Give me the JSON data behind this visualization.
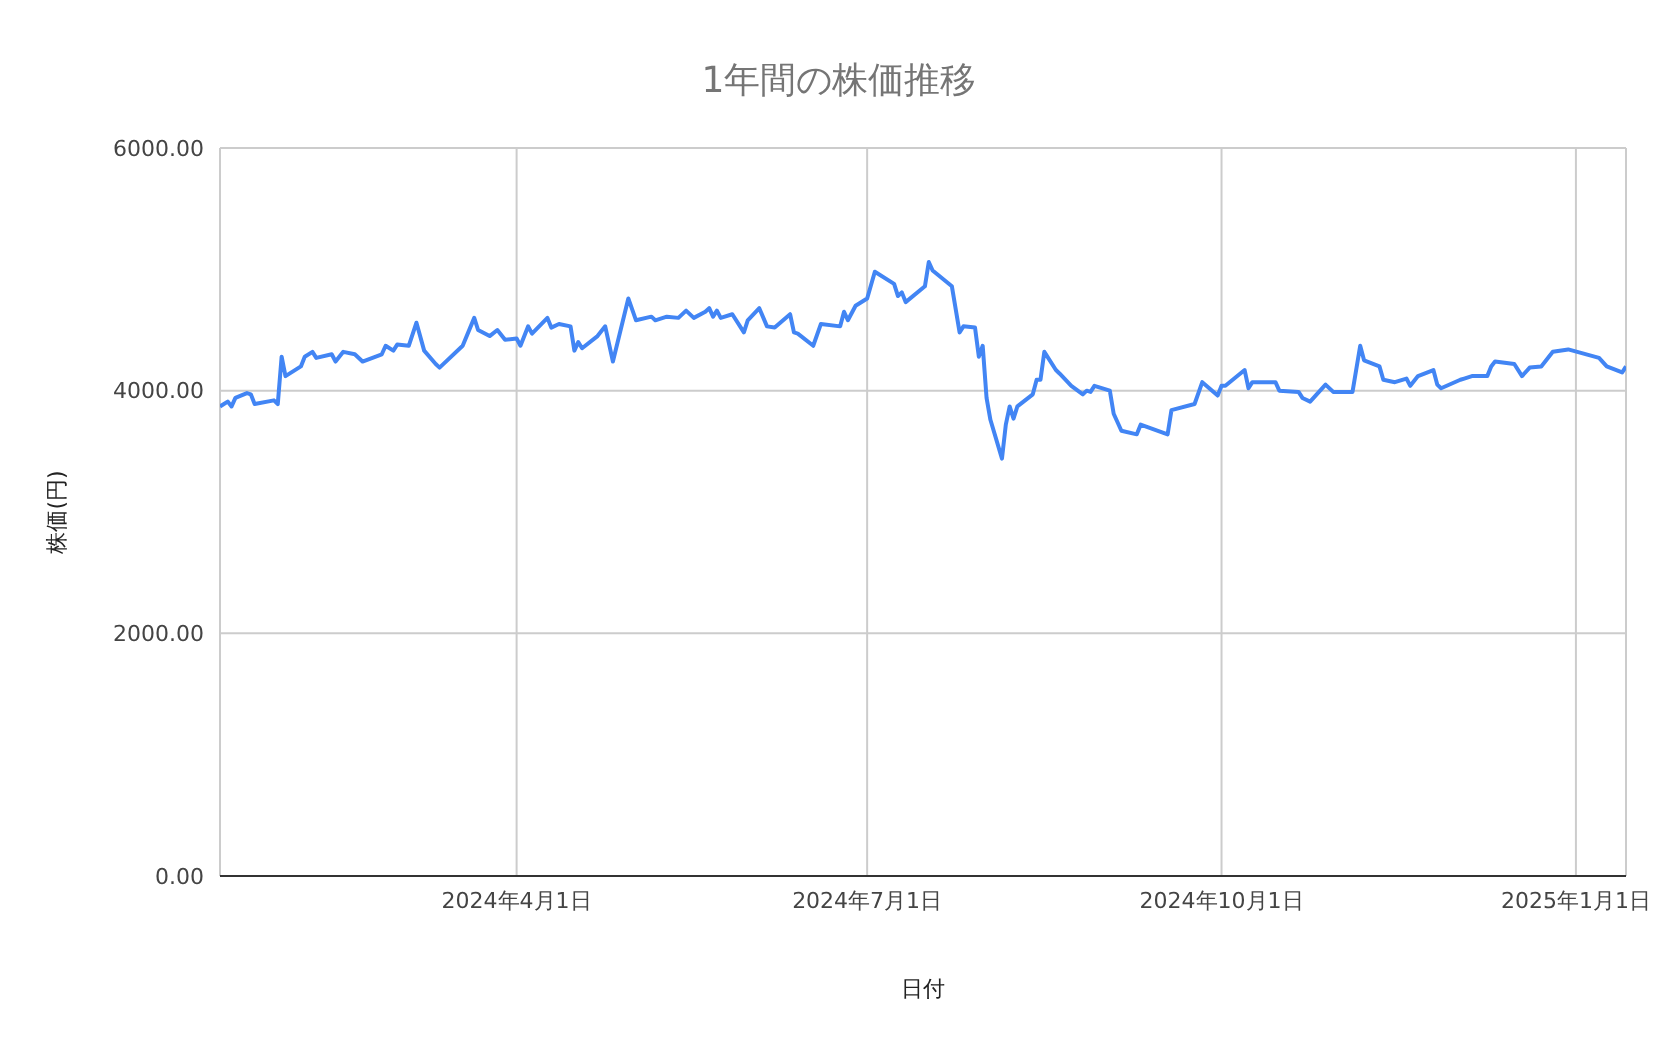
{
  "chart_data": {
    "type": "line",
    "title": "1年間の株価推移",
    "xlabel": "日付",
    "ylabel": "株価(円)",
    "x": [
      "2024-01-15",
      "2024-01-17",
      "2024-01-18",
      "2024-01-19",
      "2024-01-22",
      "2024-01-23",
      "2024-01-24",
      "2024-01-29",
      "2024-01-30",
      "2024-01-31",
      "2024-02-01",
      "2024-02-05",
      "2024-02-06",
      "2024-02-08",
      "2024-02-09",
      "2024-02-13",
      "2024-02-14",
      "2024-02-16",
      "2024-02-19",
      "2024-02-21",
      "2024-02-26",
      "2024-02-27",
      "2024-02-29",
      "2024-03-01",
      "2024-03-04",
      "2024-03-06",
      "2024-03-08",
      "2024-03-11",
      "2024-03-12",
      "2024-03-18",
      "2024-03-21",
      "2024-03-22",
      "2024-03-25",
      "2024-03-27",
      "2024-03-29",
      "2024-04-01",
      "2024-04-02",
      "2024-04-04",
      "2024-04-05",
      "2024-04-09",
      "2024-04-10",
      "2024-04-12",
      "2024-04-15",
      "2024-04-16",
      "2024-04-17",
      "2024-04-18",
      "2024-04-22",
      "2024-04-24",
      "2024-04-26",
      "2024-04-30",
      "2024-05-02",
      "2024-05-06",
      "2024-05-07",
      "2024-05-10",
      "2024-05-13",
      "2024-05-15",
      "2024-05-17",
      "2024-05-20",
      "2024-05-21",
      "2024-05-22",
      "2024-05-23",
      "2024-05-24",
      "2024-05-27",
      "2024-05-30",
      "2024-05-31",
      "2024-06-03",
      "2024-06-05",
      "2024-06-07",
      "2024-06-11",
      "2024-06-12",
      "2024-06-13",
      "2024-06-17",
      "2024-06-19",
      "2024-06-24",
      "2024-06-25",
      "2024-06-26",
      "2024-06-28",
      "2024-07-01",
      "2024-07-03",
      "2024-07-08",
      "2024-07-09",
      "2024-07-10",
      "2024-07-11",
      "2024-07-16",
      "2024-07-17",
      "2024-07-18",
      "2024-07-23",
      "2024-07-25",
      "2024-07-26",
      "2024-07-29",
      "2024-07-30",
      "2024-07-31",
      "2024-08-01",
      "2024-08-02",
      "2024-08-05",
      "2024-08-06",
      "2024-08-07",
      "2024-08-08",
      "2024-08-09",
      "2024-08-13",
      "2024-08-14",
      "2024-08-15",
      "2024-08-16",
      "2024-08-19",
      "2024-08-20",
      "2024-08-23",
      "2024-08-26",
      "2024-08-27",
      "2024-08-28",
      "2024-08-29",
      "2024-09-02",
      "2024-09-03",
      "2024-09-05",
      "2024-09-09",
      "2024-09-10",
      "2024-09-17",
      "2024-09-18",
      "2024-09-24",
      "2024-09-26",
      "2024-09-30",
      "2024-10-01",
      "2024-10-02",
      "2024-10-07",
      "2024-10-08",
      "2024-10-09",
      "2024-10-15",
      "2024-10-16",
      "2024-10-21",
      "2024-10-22",
      "2024-10-24",
      "2024-10-28",
      "2024-10-30",
      "2024-11-04",
      "2024-11-06",
      "2024-11-07",
      "2024-11-11",
      "2024-11-12",
      "2024-11-15",
      "2024-11-18",
      "2024-11-19",
      "2024-11-21",
      "2024-11-25",
      "2024-11-26",
      "2024-11-27",
      "2024-12-02",
      "2024-12-03",
      "2024-12-05",
      "2024-12-09",
      "2024-12-10",
      "2024-12-11",
      "2024-12-16",
      "2024-12-18",
      "2024-12-20",
      "2024-12-23",
      "2024-12-26",
      "2024-12-30",
      "2025-01-07",
      "2025-01-09",
      "2025-01-13",
      "2025-01-14"
    ],
    "series": [
      {
        "color": "#4285f4",
        "values": [
          3870,
          3910,
          3870,
          3940,
          3980,
          3970,
          3890,
          3920,
          3890,
          4280,
          4120,
          4200,
          4280,
          4320,
          4270,
          4300,
          4240,
          4320,
          4300,
          4240,
          4300,
          4370,
          4330,
          4380,
          4370,
          4560,
          4330,
          4220,
          4190,
          4370,
          4600,
          4500,
          4450,
          4500,
          4420,
          4430,
          4370,
          4530,
          4470,
          4600,
          4520,
          4550,
          4530,
          4330,
          4400,
          4350,
          4450,
          4530,
          4240,
          4760,
          4580,
          4610,
          4580,
          4610,
          4600,
          4660,
          4600,
          4650,
          4680,
          4610,
          4660,
          4600,
          4630,
          4480,
          4580,
          4680,
          4530,
          4520,
          4630,
          4480,
          4470,
          4370,
          4550,
          4530,
          4650,
          4580,
          4700,
          4760,
          4980,
          4880,
          4780,
          4810,
          4730,
          4860,
          5060,
          4990,
          4860,
          4480,
          4530,
          4520,
          4280,
          4370,
          3940,
          3760,
          3440,
          3720,
          3870,
          3770,
          3870,
          3970,
          4090,
          4090,
          4320,
          4170,
          4140,
          4040,
          3970,
          4000,
          3990,
          4040,
          4000,
          3810,
          3670,
          3640,
          3720,
          3640,
          3840,
          3890,
          4070,
          3960,
          4040,
          4040,
          4170,
          4020,
          4070,
          4070,
          4000,
          3990,
          3940,
          3910,
          4050,
          3990,
          3990,
          4370,
          4250,
          4200,
          4090,
          4070,
          4100,
          4040,
          4120,
          4170,
          4050,
          4020,
          4090,
          4100,
          4120,
          4120,
          4200,
          4240,
          4220,
          4120,
          4190,
          4200,
          4320,
          4340,
          4270,
          4200,
          4150,
          4200
        ]
      }
    ],
    "xlim": [
      "2024-01-15",
      "2025-01-14"
    ],
    "xticks": [
      {
        "value": "2024-04-01",
        "label": "2024年4月1日"
      },
      {
        "value": "2024-07-01",
        "label": "2024年7月1日"
      },
      {
        "value": "2024-10-01",
        "label": "2024年10月1日"
      },
      {
        "value": "2025-01-01",
        "label": "2025年1月1日"
      }
    ],
    "ylim": [
      0,
      6000
    ],
    "yticks": [
      {
        "value": 0,
        "label": "0.00"
      },
      {
        "value": 2000,
        "label": "2000.00"
      },
      {
        "value": 4000,
        "label": "4000.00"
      },
      {
        "value": 6000,
        "label": "6000.00"
      }
    ],
    "grid": true,
    "legend": false,
    "marker": "none",
    "line_style": "solid"
  }
}
